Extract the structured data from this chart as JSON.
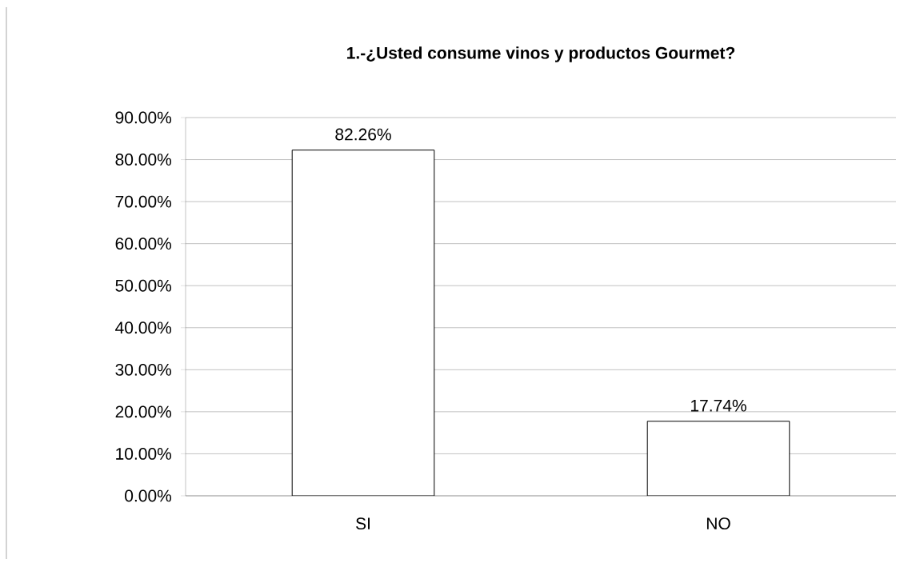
{
  "chart_data": {
    "type": "bar",
    "title": "1.-¿Usted consume vinos y productos Gourmet?",
    "categories": [
      "SI",
      "NO"
    ],
    "values": [
      82.26,
      17.74
    ],
    "value_labels": [
      "82.26%",
      "17.74%"
    ],
    "color": "#ffffff",
    "ylim": [
      0,
      90
    ],
    "yticks": [
      {
        "value": 0,
        "label": "0.00%"
      },
      {
        "value": 10,
        "label": "10.00%"
      },
      {
        "value": 20,
        "label": "20.00%"
      },
      {
        "value": 30,
        "label": "30.00%"
      },
      {
        "value": 40,
        "label": "40.00%"
      },
      {
        "value": 50,
        "label": "50.00%"
      },
      {
        "value": 60,
        "label": "60.00%"
      },
      {
        "value": 70,
        "label": "70.00%"
      },
      {
        "value": 80,
        "label": "80.00%"
      },
      {
        "value": 90,
        "label": "90.00%"
      }
    ],
    "grid": "y"
  }
}
